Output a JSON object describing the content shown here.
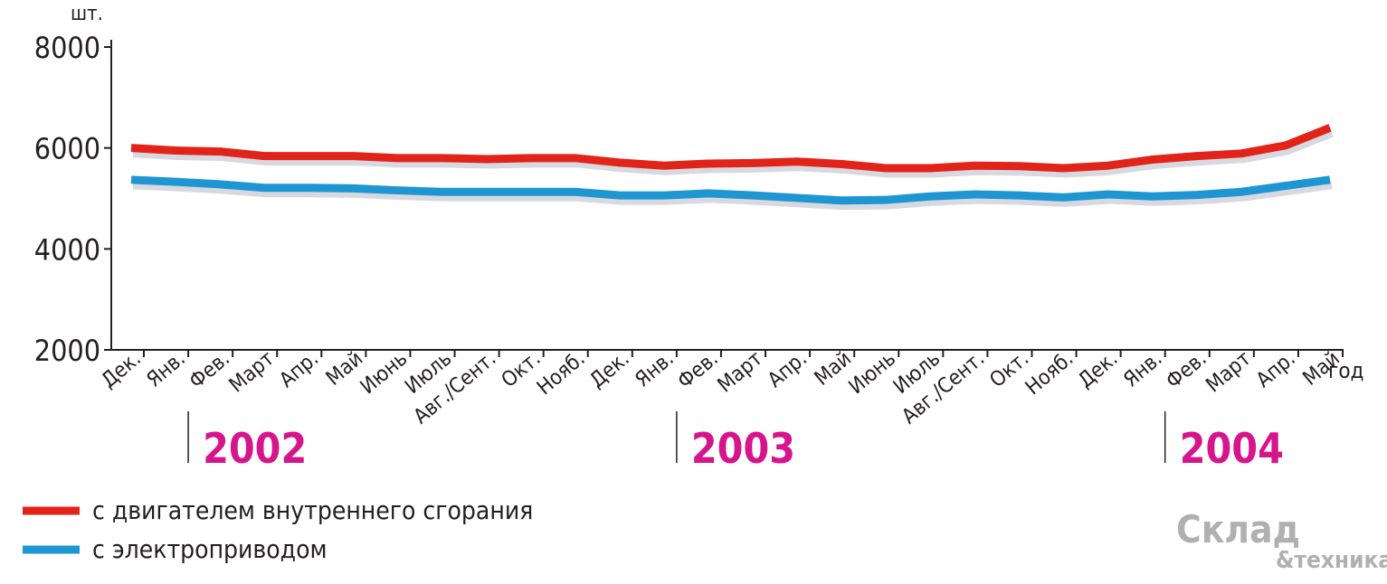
{
  "chart_data": {
    "type": "line",
    "y_unit": "шт.",
    "x_label": "год",
    "categories": [
      "Дек.",
      "Янв.",
      "Фев.",
      "Март",
      "Апр.",
      "Май",
      "Июнь",
      "Июль",
      "Авг./Сент.",
      "Окт.",
      "Нояб.",
      "Дек.",
      "Янв.",
      "Фев.",
      "Март",
      "Апр.",
      "Май",
      "Июнь",
      "Июль",
      "Авг./Сент.",
      "Окт.",
      "Нояб.",
      "Дек.",
      "Янв.",
      "Фев.",
      "Март",
      "Апр.",
      "Май"
    ],
    "year_labels": [
      "2002",
      "2003",
      "2004"
    ],
    "series": [
      {
        "name": "с двигателем внутреннего сгорания",
        "color": "#e2231a",
        "values": [
          6000,
          5950,
          5930,
          5840,
          5840,
          5840,
          5800,
          5800,
          5780,
          5800,
          5800,
          5710,
          5650,
          5690,
          5700,
          5730,
          5680,
          5600,
          5600,
          5650,
          5640,
          5600,
          5650,
          5770,
          5840,
          5890,
          6050,
          6400
        ]
      },
      {
        "name": "с электроприводом",
        "color": "#1e96d2",
        "values": [
          5370,
          5330,
          5280,
          5210,
          5210,
          5200,
          5160,
          5130,
          5130,
          5130,
          5130,
          5060,
          5060,
          5100,
          5060,
          5010,
          4960,
          4970,
          5040,
          5080,
          5060,
          5020,
          5080,
          5040,
          5070,
          5130,
          5250,
          5370
        ]
      }
    ],
    "ylim": [
      2000,
      8000
    ],
    "yticks": [
      2000,
      4000,
      6000,
      8000
    ],
    "year_color": "#d6158c",
    "logo": [
      "Склад",
      "&техника"
    ]
  }
}
